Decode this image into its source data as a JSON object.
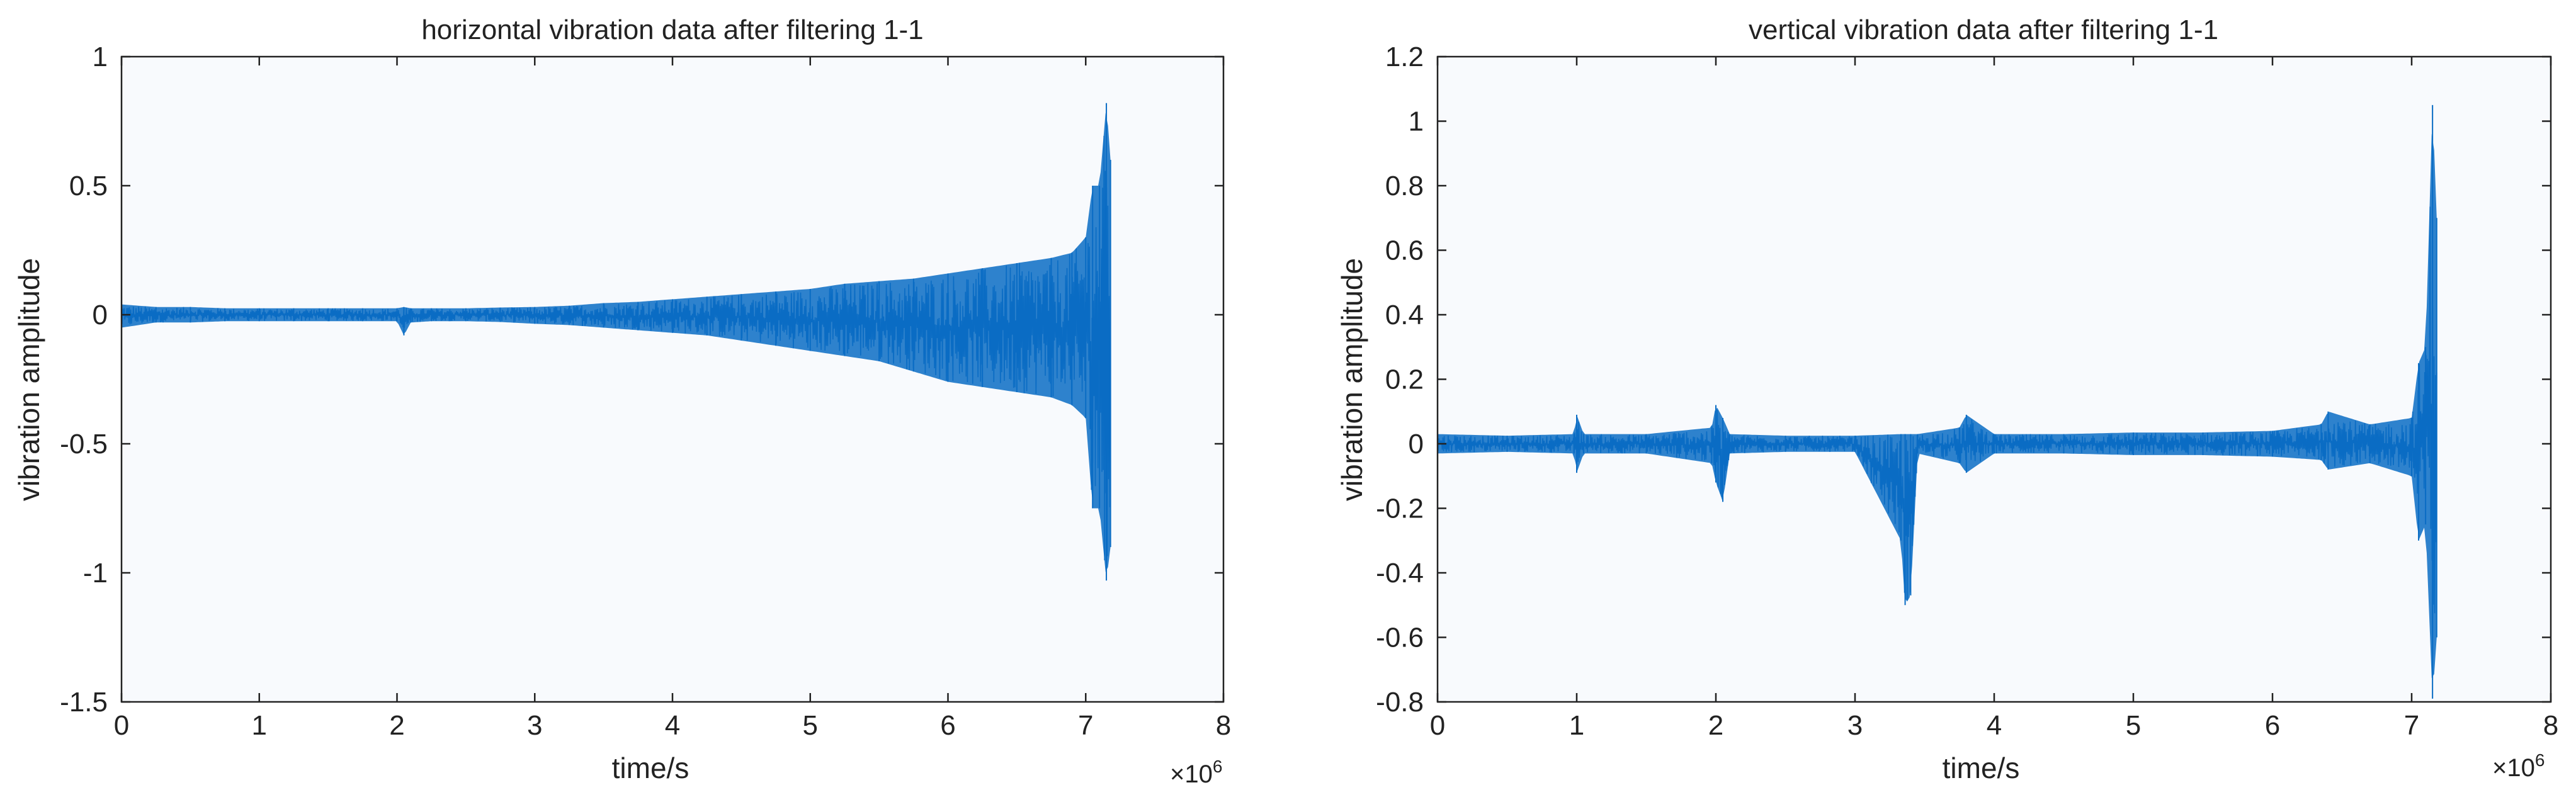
{
  "figure": {
    "background": "#ffffff",
    "plot_background": "#f8fafd",
    "axis_color": "#222222",
    "line_color": "#0a6cc4"
  },
  "chart_data": [
    {
      "type": "line",
      "title": "horizontal vibration data after filtering 1-1",
      "xlabel": "time/s",
      "ylabel": "vibration amplitude",
      "x_exponent": "×10",
      "x_exponent_power": "6",
      "xlim": [
        0,
        8
      ],
      "ylim": [
        -1.5,
        1
      ],
      "xticks": [
        0,
        1,
        2,
        3,
        4,
        5,
        6,
        7,
        8
      ],
      "xtick_labels": [
        "0",
        "1",
        "2",
        "3",
        "4",
        "5",
        "6",
        "7",
        "8"
      ],
      "yticks": [
        -1.5,
        -1,
        -0.5,
        0,
        0.5,
        1
      ],
      "ytick_labels": [
        "-1.5",
        "-1",
        "-0.5",
        "0",
        "0.5",
        "1"
      ],
      "grid": false,
      "series": [
        {
          "color": "#0a6cc4",
          "x": [
            0,
            0.25,
            0.5,
            0.75,
            1.0,
            1.25,
            1.5,
            1.75,
            2.0,
            2.05,
            2.1,
            2.25,
            2.5,
            2.75,
            3.0,
            3.25,
            3.5,
            3.75,
            4.0,
            4.25,
            4.5,
            4.75,
            5.0,
            5.25,
            5.5,
            5.75,
            6.0,
            6.25,
            6.5,
            6.75,
            6.9,
            7.0,
            7.05,
            7.1,
            7.15,
            7.18
          ],
          "upper": [
            0.04,
            0.03,
            0.03,
            0.025,
            0.025,
            0.025,
            0.025,
            0.025,
            0.025,
            0.03,
            0.025,
            0.025,
            0.025,
            0.028,
            0.03,
            0.035,
            0.045,
            0.05,
            0.06,
            0.07,
            0.08,
            0.09,
            0.1,
            0.12,
            0.13,
            0.14,
            0.16,
            0.18,
            0.2,
            0.22,
            0.24,
            0.3,
            0.5,
            0.5,
            0.82,
            0.6
          ],
          "lower": [
            -0.05,
            -0.03,
            -0.03,
            -0.025,
            -0.025,
            -0.025,
            -0.025,
            -0.025,
            -0.025,
            -0.08,
            -0.03,
            -0.025,
            -0.025,
            -0.028,
            -0.035,
            -0.04,
            -0.05,
            -0.06,
            -0.07,
            -0.08,
            -0.1,
            -0.12,
            -0.14,
            -0.16,
            -0.18,
            -0.22,
            -0.26,
            -0.28,
            -0.3,
            -0.32,
            -0.35,
            -0.4,
            -0.75,
            -0.75,
            -1.03,
            -0.9
          ]
        }
      ]
    },
    {
      "type": "line",
      "title": "vertical vibration data after filtering 1-1",
      "xlabel": "time/s",
      "ylabel": "vibration amplitude",
      "x_exponent": "×10",
      "x_exponent_power": "6",
      "xlim": [
        0,
        8
      ],
      "ylim": [
        -0.8,
        1.2
      ],
      "xticks": [
        0,
        1,
        2,
        3,
        4,
        5,
        6,
        7,
        8
      ],
      "xtick_labels": [
        "0",
        "1",
        "2",
        "3",
        "4",
        "5",
        "6",
        "7",
        "8"
      ],
      "yticks": [
        -0.8,
        -0.6,
        -0.4,
        -0.2,
        0,
        0.2,
        0.4,
        0.6,
        0.8,
        1,
        1.2
      ],
      "ytick_labels": [
        "-0.8",
        "-0.6",
        "-0.4",
        "-0.2",
        "0",
        "0.2",
        "0.4",
        "0.6",
        "0.8",
        "1",
        "1.2"
      ],
      "grid": false,
      "series": [
        {
          "color": "#0a6cc4",
          "x": [
            0,
            0.5,
            0.98,
            1.0,
            1.05,
            1.5,
            1.97,
            2.0,
            2.05,
            2.1,
            2.5,
            3.0,
            3.33,
            3.36,
            3.4,
            3.45,
            3.75,
            3.8,
            4.0,
            4.5,
            5.0,
            5.5,
            6.0,
            6.35,
            6.4,
            6.7,
            7.0,
            7.05,
            7.1,
            7.15,
            7.18
          ],
          "upper": [
            0.03,
            0.025,
            0.03,
            0.09,
            0.03,
            0.03,
            0.05,
            0.12,
            0.08,
            0.03,
            0.025,
            0.025,
            0.03,
            0.03,
            0.03,
            0.03,
            0.05,
            0.09,
            0.03,
            0.03,
            0.035,
            0.035,
            0.04,
            0.06,
            0.1,
            0.06,
            0.08,
            0.25,
            0.3,
            1.05,
            0.7
          ],
          "lower": [
            -0.03,
            -0.025,
            -0.03,
            -0.09,
            -0.03,
            -0.03,
            -0.06,
            -0.12,
            -0.18,
            -0.03,
            -0.025,
            -0.025,
            -0.3,
            -0.5,
            -0.47,
            -0.03,
            -0.06,
            -0.09,
            -0.03,
            -0.03,
            -0.035,
            -0.035,
            -0.04,
            -0.05,
            -0.08,
            -0.06,
            -0.1,
            -0.3,
            -0.25,
            -0.79,
            -0.6
          ]
        }
      ]
    }
  ]
}
